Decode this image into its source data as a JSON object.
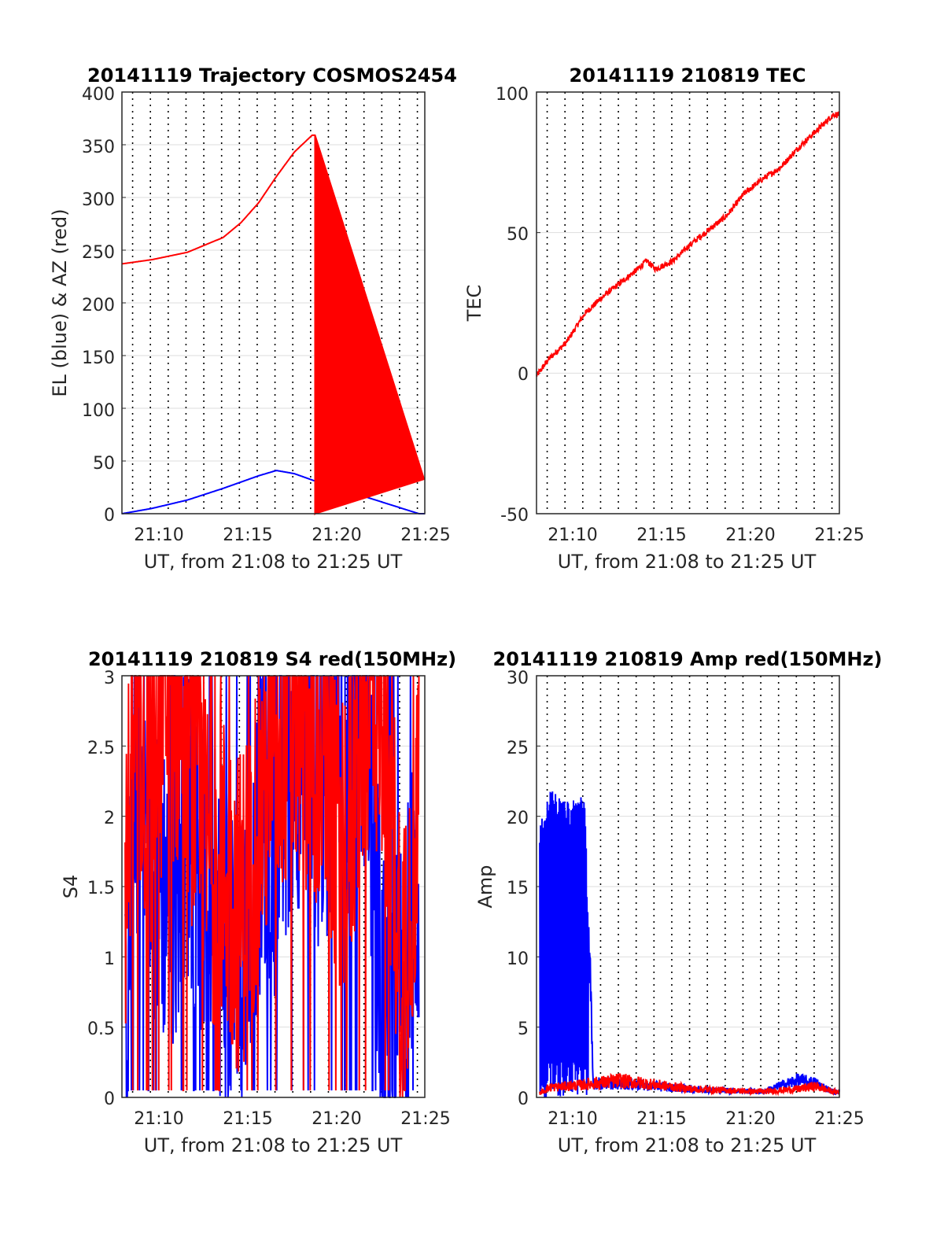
{
  "colors": {
    "el": "#0000ff",
    "az": "#ff0000",
    "grid_h": "#dedede",
    "vline": "#000000"
  },
  "panels": [
    {
      "title": "20141119 Trajectory COSMOS2454",
      "xlabel": "UT, from 21:08 to 21:25 UT",
      "ylabel": "EL (blue) & AZ (red)",
      "xticks": [
        "21:10",
        "21:15",
        "21:20",
        "21:25"
      ],
      "yticks": [
        "0",
        "50",
        "100",
        "150",
        "200",
        "250",
        "300",
        "350",
        "400"
      ]
    },
    {
      "title": "20141119 210819 TEC",
      "xlabel": "UT, from 21:08 to 21:25 UT",
      "ylabel": "TEC",
      "xticks": [
        "21:10",
        "21:15",
        "21:20",
        "21:25"
      ],
      "yticks": [
        "-50",
        "0",
        "50",
        "100"
      ]
    },
    {
      "title": "20141119 210819 S4 red(150MHz)",
      "xlabel": "UT, from 21:08 to 21:25 UT",
      "ylabel": "S4",
      "xticks": [
        "21:10",
        "21:15",
        "21:20",
        "21:25"
      ],
      "yticks": [
        "0",
        "0.5",
        "1",
        "1.5",
        "2",
        "2.5",
        "3"
      ]
    },
    {
      "title": "20141119 210819 Amp red(150MHz)",
      "xlabel": "UT, from 21:08 to 21:25 UT",
      "ylabel": "Amp",
      "xticks": [
        "21:10",
        "21:15",
        "21:20",
        "21:25"
      ],
      "yticks": [
        "0",
        "5",
        "10",
        "15",
        "20",
        "25",
        "30"
      ]
    }
  ],
  "chart_data": [
    {
      "type": "line",
      "title": "20141119 Trajectory COSMOS2454",
      "xlabel": "UT, from 21:08 to 21:25 UT",
      "ylabel": "EL (blue) & AZ (red)",
      "xlim": [
        "21:08:19",
        "21:25:20"
      ],
      "ylim": [
        0,
        400
      ],
      "x": [
        "21:08:19",
        "21:10",
        "21:12",
        "21:14",
        "21:15",
        "21:16",
        "21:17",
        "21:18",
        "21:19",
        "21:19:10",
        "21:20",
        "21:22",
        "21:25"
      ],
      "series": [
        {
          "values": [
            0,
            5,
            13,
            24,
            30,
            36,
            41,
            38,
            32,
            31,
            26,
            16,
            0
          ]
        },
        {
          "values": [
            237,
            241,
            248,
            262,
            276,
            295,
            320,
            343,
            359,
            0,
            12,
            24,
            33
          ]
        }
      ]
    },
    {
      "type": "line",
      "title": "20141119 210819 TEC",
      "xlabel": "UT, from 21:08 to 21:25 UT",
      "ylabel": "TEC",
      "xlim": [
        "21:08:19",
        "21:25:20"
      ],
      "ylim": [
        -50,
        100
      ],
      "x": [
        "21:08:19",
        "21:09",
        "21:10",
        "21:11",
        "21:12",
        "21:13",
        "21:14",
        "21:14:30",
        "21:15",
        "21:16",
        "21:17",
        "21:18",
        "21:19",
        "21:20",
        "21:21",
        "21:22",
        "21:23",
        "21:24",
        "21:25"
      ],
      "series": [
        {
          "values": [
            -1,
            5,
            11,
            21,
            27,
            32,
            37,
            40,
            37,
            40,
            46,
            51,
            56,
            64,
            69,
            73,
            80,
            86,
            92
          ]
        }
      ]
    },
    {
      "type": "line",
      "title": "20141119 210819 S4 red(150MHz)",
      "xlabel": "UT, from 21:08 to 21:25 UT",
      "ylabel": "S4",
      "xlim": [
        "21:08:19",
        "21:25:20"
      ],
      "ylim": [
        0,
        3
      ],
      "x": [
        "21:08:30",
        "21:09",
        "21:10",
        "21:11",
        "21:12",
        "21:13",
        "21:14",
        "21:15",
        "21:16",
        "21:17",
        "21:18",
        "21:19",
        "21:20",
        "21:21",
        "21:22",
        "21:23",
        "21:24",
        "21:25"
      ],
      "series": [
        {
          "values": [
            1.5,
            2.7,
            2.2,
            2.9,
            2.6,
            1.8,
            1.6,
            1.3,
            2.0,
            2.5,
            2.8,
            2.6,
            2.2,
            1.8,
            2.9,
            2.8,
            1.0,
            2.0
          ]
        },
        {
          "values": [
            0.2,
            2.3,
            1.8,
            1.4,
            2.0,
            1.5,
            1.1,
            0.9,
            1.9,
            1.9,
            2.6,
            2.2,
            2.3,
            2.8,
            2.7,
            0.6,
            0.65,
            1.5
          ]
        }
      ]
    },
    {
      "type": "line",
      "title": "20141119 210819 Amp red(150MHz)",
      "xlabel": "UT, from 21:08 to 21:25 UT",
      "ylabel": "Amp",
      "xlim": [
        "21:08:19",
        "21:25:20"
      ],
      "ylim": [
        0,
        30
      ],
      "x": [
        "21:08:30",
        "21:09",
        "21:10",
        "21:11",
        "21:11:30",
        "21:13",
        "21:15",
        "21:17",
        "21:19",
        "21:21",
        "21:23",
        "21:24",
        "21:25"
      ],
      "series": [
        {
          "values": [
            0.3,
            0.7,
            0.8,
            0.9,
            1.0,
            1.2,
            0.9,
            0.6,
            0.5,
            0.4,
            0.6,
            0.8,
            0.4
          ]
        },
        {
          "values": [
            18,
            20,
            19,
            20,
            1.0,
            1.0,
            0.8,
            0.6,
            0.5,
            0.4,
            1.2,
            1.0,
            0.4
          ]
        }
      ]
    }
  ]
}
